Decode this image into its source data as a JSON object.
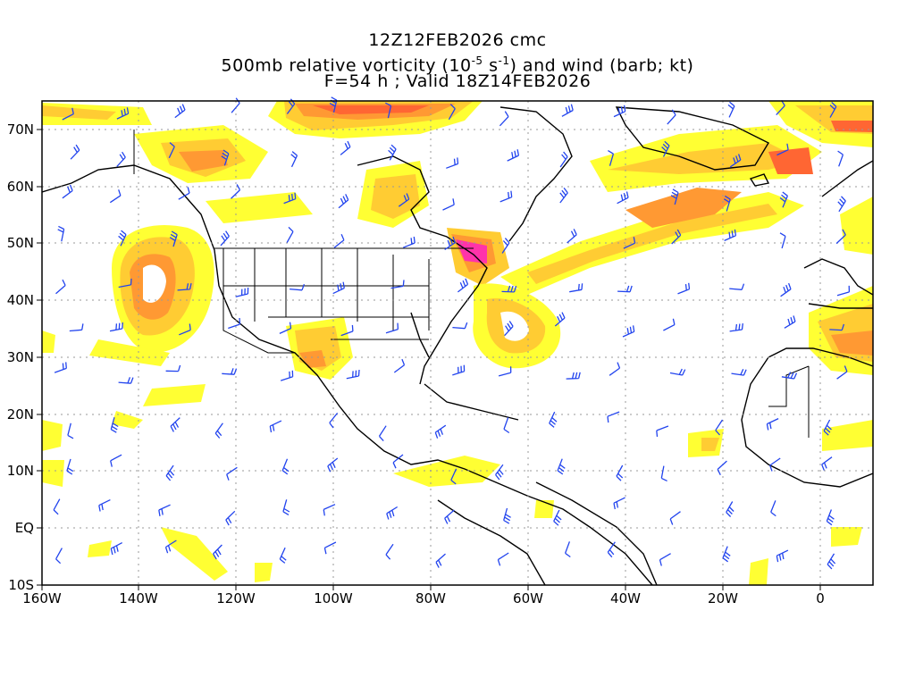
{
  "header": {
    "line1": "12Z12FEB2026 cmc",
    "line2_a": "500mb relative vorticity (10",
    "line2_exp1": "-5",
    "line2_b": " s",
    "line2_exp2": "-1",
    "line2_c": ") and wind (barb; kt)",
    "line3": "F=54 h ; Valid 18Z14FEB2026"
  },
  "axes": {
    "lat_labels": [
      "70N",
      "60N",
      "50N",
      "40N",
      "30N",
      "20N",
      "10N",
      "EQ",
      "10S"
    ],
    "lon_labels": [
      "160W",
      "140W",
      "120W",
      "100W",
      "80W",
      "60W",
      "40W",
      "20W",
      "0"
    ]
  },
  "colors": {
    "shade_light": "#ffff33",
    "shade_mid": "#ffcc33",
    "shade_orange": "#ff9933",
    "shade_deep": "#ff6633",
    "shade_max": "#ff33aa",
    "barbs": "#2244ee",
    "coast": "#000000"
  }
}
